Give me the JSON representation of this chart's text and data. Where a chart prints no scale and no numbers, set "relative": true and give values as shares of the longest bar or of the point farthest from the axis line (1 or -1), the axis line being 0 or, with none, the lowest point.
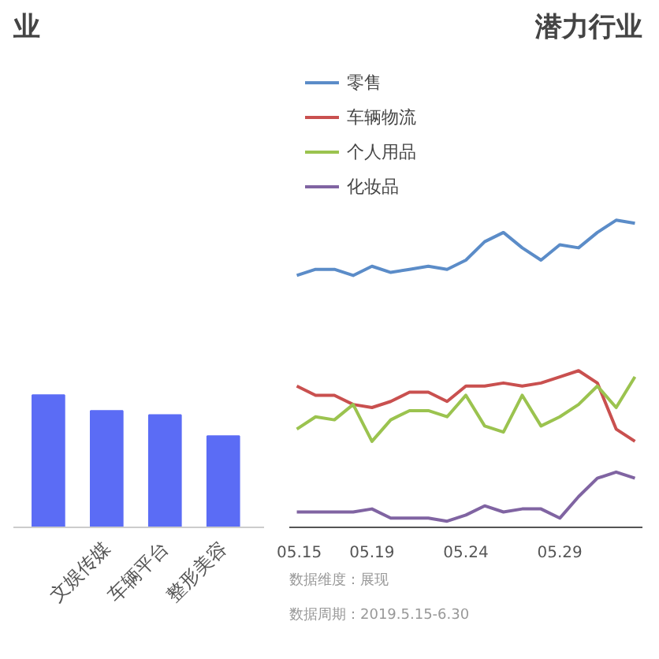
{
  "chart_data": [
    {
      "type": "bar",
      "title": "业",
      "categories": [
        null,
        "文娱传媒",
        "车辆平台",
        "整形美容"
      ],
      "values": [
        1,
        0.88,
        0.85,
        0.69
      ],
      "color": "#5b6cf5",
      "relative": true,
      "grid": false
    },
    {
      "type": "line",
      "title": "潜力行业",
      "relative": true,
      "categories": [
        "05.15",
        null,
        null,
        null,
        "05.19",
        null,
        null,
        null,
        null,
        "05.24",
        null,
        null,
        null,
        null,
        "05.29",
        null,
        null,
        null,
        null
      ],
      "series": [
        {
          "name": "零售",
          "color": "#5b8cc8",
          "values": [
            0.82,
            0.84,
            0.84,
            0.82,
            0.85,
            0.83,
            0.84,
            0.85,
            0.84,
            0.87,
            0.93,
            0.96,
            0.91,
            0.87,
            0.92,
            0.91,
            0.96,
            1,
            0.99
          ]
        },
        {
          "name": "车辆物流",
          "color": "#c9504f",
          "values": [
            0.46,
            0.43,
            0.43,
            0.4,
            0.39,
            0.41,
            0.44,
            0.44,
            0.41,
            0.46,
            0.46,
            0.47,
            0.46,
            0.47,
            0.49,
            0.51,
            0.47,
            0.32,
            0.28
          ]
        },
        {
          "name": "个人用品",
          "color": "#9bc34f",
          "values": [
            0.32,
            0.36,
            0.35,
            0.4,
            0.28,
            0.35,
            0.38,
            0.38,
            0.36,
            0.43,
            0.33,
            0.31,
            0.43,
            0.33,
            0.36,
            0.4,
            0.46,
            0.39,
            0.49
          ]
        },
        {
          "name": "化妆品",
          "color": "#8064a2",
          "values": [
            0.05,
            0.05,
            0.05,
            0.05,
            0.06,
            0.03,
            0.03,
            0.03,
            0.02,
            0.04,
            0.07,
            0.05,
            0.06,
            0.06,
            0.03,
            0.1,
            0.16,
            0.18,
            0.16
          ]
        }
      ],
      "legend": "top left",
      "grid": false,
      "marker": "none",
      "line_style": "solid",
      "annotations": [
        "数据维度：展现",
        "数据周期：2019.5.15-6.30"
      ]
    }
  ]
}
